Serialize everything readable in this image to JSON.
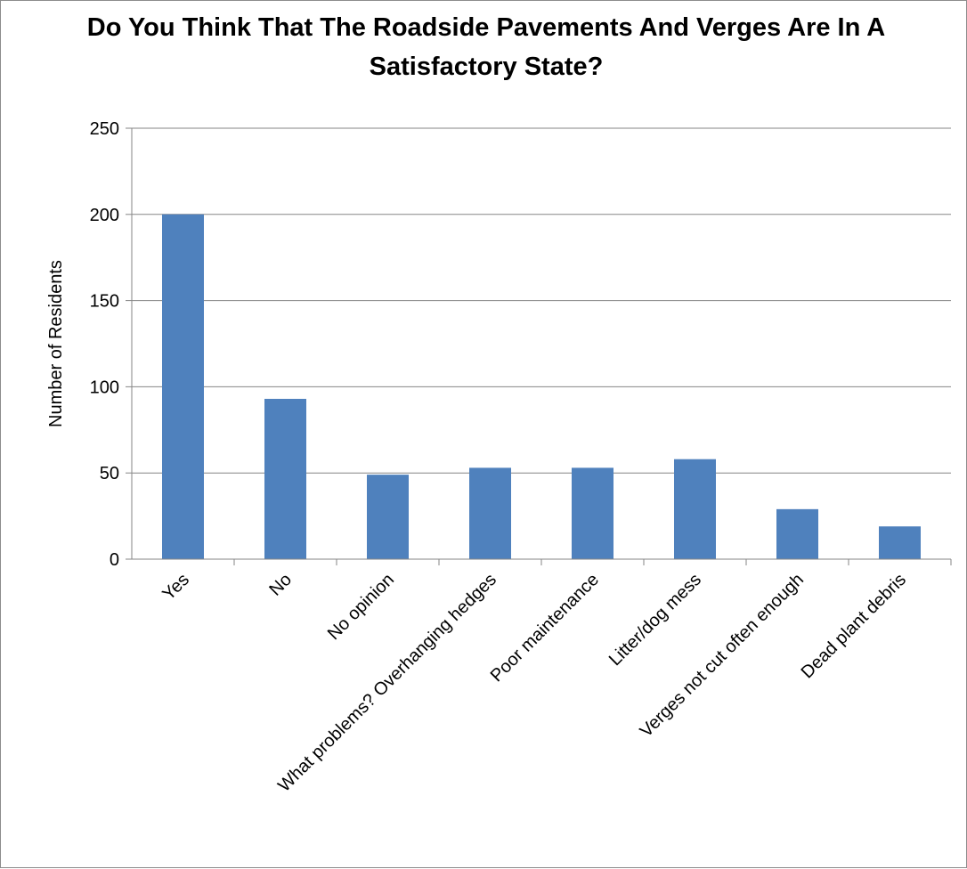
{
  "chart_data": {
    "type": "bar",
    "title": "Do You Think That The Roadside Pavements And Verges Are In A Satisfactory State?",
    "xlabel": "",
    "ylabel": "Number of Residents",
    "ylim": [
      0,
      250
    ],
    "yticks": [
      0,
      50,
      100,
      150,
      200,
      250
    ],
    "grid": true,
    "legend": "none",
    "bar_color": "#4f81bd",
    "categories": [
      "Yes",
      "No",
      "No opinion",
      "What problems? Overhanging hedges",
      "Poor maintenance",
      "Litter/dog mess",
      "Verges not cut often enough",
      "Dead plant debris"
    ],
    "values": [
      200,
      93,
      49,
      53,
      53,
      58,
      29,
      19
    ]
  }
}
